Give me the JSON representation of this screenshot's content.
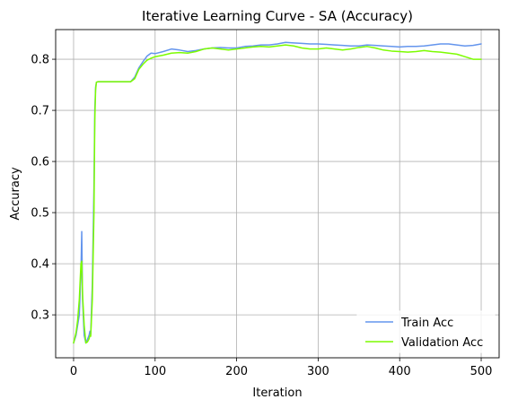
{
  "chart_data": {
    "type": "line",
    "title": "Iterative Learning Curve - SA (Accuracy)",
    "xlabel": "Iteration",
    "ylabel": "Accuracy",
    "xlim": [
      -22,
      522
    ],
    "ylim": [
      0.216,
      0.858
    ],
    "xticks": [
      0,
      100,
      200,
      300,
      400,
      500
    ],
    "yticks": [
      0.3,
      0.4,
      0.5,
      0.6,
      0.7,
      0.8
    ],
    "xtick_labels": [
      "0",
      "100",
      "200",
      "300",
      "400",
      "500"
    ],
    "ytick_labels": [
      "0.3",
      "0.4",
      "0.5",
      "0.6",
      "0.7",
      "0.8"
    ],
    "grid": true,
    "legend_position": "lower-right",
    "series": [
      {
        "name": "Train Acc",
        "color": "#6495ed",
        "x": [
          0,
          3,
          5,
          7,
          9,
          10,
          11,
          13,
          15,
          17,
          19,
          20,
          21,
          23,
          25,
          26,
          27,
          28,
          30,
          40,
          50,
          60,
          70,
          75,
          80,
          85,
          90,
          95,
          100,
          110,
          120,
          130,
          140,
          150,
          160,
          170,
          180,
          190,
          200,
          210,
          220,
          230,
          240,
          250,
          260,
          270,
          280,
          290,
          300,
          310,
          320,
          330,
          340,
          350,
          360,
          370,
          380,
          390,
          400,
          410,
          420,
          430,
          440,
          450,
          460,
          470,
          480,
          490,
          500
        ],
        "y": [
          0.245,
          0.26,
          0.28,
          0.3,
          0.38,
          0.463,
          0.33,
          0.26,
          0.245,
          0.252,
          0.26,
          0.268,
          0.262,
          0.36,
          0.55,
          0.7,
          0.745,
          0.755,
          0.756,
          0.756,
          0.756,
          0.756,
          0.756,
          0.765,
          0.783,
          0.795,
          0.806,
          0.812,
          0.811,
          0.815,
          0.82,
          0.818,
          0.815,
          0.817,
          0.82,
          0.822,
          0.823,
          0.822,
          0.822,
          0.825,
          0.826,
          0.828,
          0.828,
          0.83,
          0.833,
          0.832,
          0.831,
          0.83,
          0.83,
          0.829,
          0.828,
          0.827,
          0.826,
          0.826,
          0.828,
          0.827,
          0.826,
          0.825,
          0.824,
          0.825,
          0.825,
          0.826,
          0.828,
          0.83,
          0.83,
          0.828,
          0.826,
          0.827,
          0.83
        ]
      },
      {
        "name": "Validation Acc",
        "color": "#7cfc00",
        "x": [
          0,
          3,
          5,
          7,
          9,
          10,
          11,
          13,
          15,
          17,
          19,
          20,
          21,
          23,
          25,
          26,
          27,
          28,
          30,
          40,
          50,
          60,
          70,
          75,
          80,
          85,
          90,
          95,
          100,
          110,
          120,
          130,
          140,
          150,
          160,
          170,
          180,
          190,
          200,
          210,
          220,
          230,
          240,
          250,
          260,
          270,
          280,
          290,
          300,
          310,
          320,
          330,
          340,
          350,
          360,
          370,
          380,
          390,
          400,
          410,
          420,
          430,
          440,
          450,
          460,
          470,
          480,
          490,
          500
        ],
        "y": [
          0.245,
          0.265,
          0.29,
          0.33,
          0.4,
          0.405,
          0.34,
          0.28,
          0.245,
          0.247,
          0.253,
          0.26,
          0.258,
          0.33,
          0.5,
          0.68,
          0.74,
          0.755,
          0.756,
          0.756,
          0.756,
          0.756,
          0.756,
          0.762,
          0.78,
          0.79,
          0.798,
          0.802,
          0.805,
          0.808,
          0.812,
          0.813,
          0.812,
          0.815,
          0.82,
          0.822,
          0.82,
          0.818,
          0.82,
          0.822,
          0.824,
          0.825,
          0.824,
          0.826,
          0.828,
          0.826,
          0.822,
          0.82,
          0.82,
          0.822,
          0.82,
          0.818,
          0.82,
          0.823,
          0.825,
          0.822,
          0.818,
          0.816,
          0.815,
          0.814,
          0.815,
          0.817,
          0.815,
          0.814,
          0.812,
          0.81,
          0.805,
          0.8,
          0.8
        ]
      }
    ]
  }
}
